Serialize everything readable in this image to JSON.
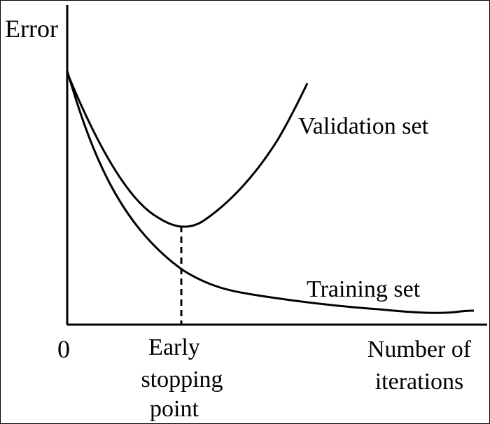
{
  "diagram": {
    "y_axis_label": "Error",
    "x_origin_label": "0",
    "x_axis_label_line1": "Number of",
    "x_axis_label_line2": "iterations",
    "marker_label_line1": "Early",
    "marker_label_line2": "stopping",
    "marker_label_line3": "point",
    "series": [
      {
        "name": "Validation set"
      },
      {
        "name": "Training set"
      }
    ],
    "colors": {
      "ink": "#000000",
      "background": "#ffffff"
    }
  }
}
